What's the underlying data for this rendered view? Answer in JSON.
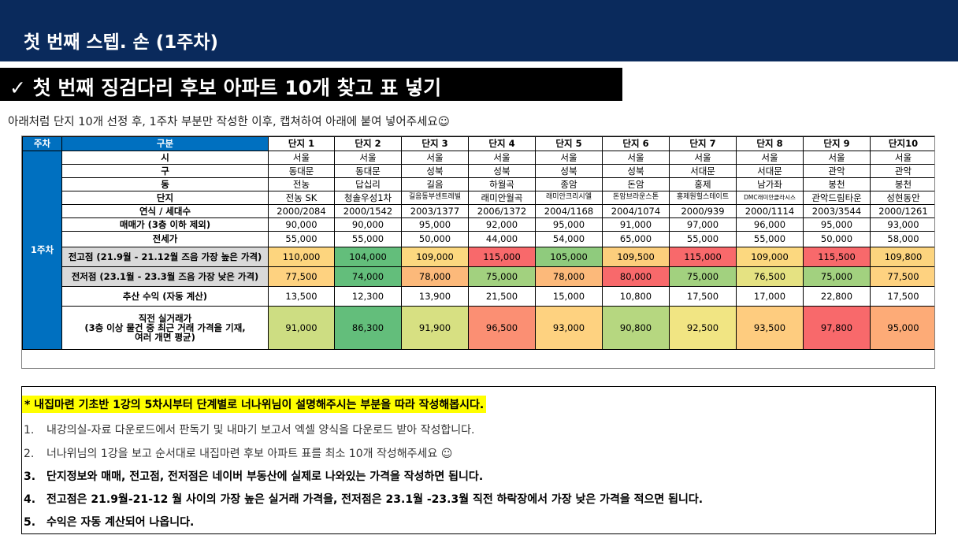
{
  "header": {
    "title": "첫 번째 스텝. 손 (1주차)"
  },
  "subtitle": {
    "check": "✓",
    "text": "첫 번째 징검다리 후보 아파트 10개 찾고 표 넣기"
  },
  "instruction": "아래처럼 단지 10개 선정 후, 1주차 부분만 작성한 이후, 캡쳐하여 아래에 붙여 넣어주세요☺",
  "table": {
    "head": {
      "week": "주차",
      "category": "구분",
      "complexes": [
        "단지 1",
        "단지 2",
        "단지 3",
        "단지 4",
        "단지 5",
        "단지 6",
        "단지 7",
        "단지 8",
        "단지 9",
        "단지10"
      ]
    },
    "week_label": "1주차",
    "rows": {
      "city": {
        "label": "시",
        "values": [
          "서울",
          "서울",
          "서울",
          "서울",
          "서울",
          "서울",
          "서울",
          "서울",
          "서울",
          "서울"
        ]
      },
      "gu": {
        "label": "구",
        "values": [
          "동대문",
          "동대문",
          "성북",
          "성북",
          "성북",
          "성북",
          "서대문",
          "서대문",
          "관악",
          "관악"
        ]
      },
      "dong": {
        "label": "동",
        "values": [
          "전농",
          "답십리",
          "길음",
          "하월곡",
          "종암",
          "돈암",
          "홍제",
          "남가좌",
          "봉천",
          "봉천"
        ]
      },
      "complex": {
        "label": "단지",
        "values": [
          "전농 SK",
          "청솔우성1차",
          "길음동부센트레빌",
          "래미안월곡",
          "래미안크리시엘",
          "돈암브라운스톤",
          "홍제원힐스테이트",
          "DMC래미안클라시스",
          "관악드림타운",
          "성현동안"
        ]
      },
      "year": {
        "label": "연식 / 세대수",
        "values": [
          "2000/2084",
          "2000/1542",
          "2003/1377",
          "2006/1372",
          "2004/1168",
          "2004/1074",
          "2000/939",
          "2000/1114",
          "2003/3544",
          "2000/1261"
        ]
      },
      "sale": {
        "label": "매매가 (3층 이하 제외)",
        "values": [
          "90,000",
          "90,000",
          "95,000",
          "92,000",
          "95,000",
          "91,000",
          "97,000",
          "96,000",
          "95,000",
          "93,000"
        ]
      },
      "jeonse": {
        "label": "전세가",
        "values": [
          "55,000",
          "55,000",
          "50,000",
          "44,000",
          "54,000",
          "65,000",
          "55,000",
          "55,000",
          "50,000",
          "58,000"
        ]
      },
      "high": {
        "label": "전고점 (21.9월 - 21.12월 즈음 가장 높은 가격)",
        "values": [
          "110,000",
          "104,000",
          "109,000",
          "115,000",
          "105,000",
          "109,500",
          "115,000",
          "109,000",
          "115,500",
          "109,800"
        ],
        "colors": [
          "#fdd57e",
          "#63be7b",
          "#fcd87f",
          "#f8696b",
          "#8fcb7d",
          "#fcce7c",
          "#f8696b",
          "#fcd87f",
          "#f8696b",
          "#fcd47e"
        ]
      },
      "low": {
        "label": "전저점 (23.1월 - 23.3월 즈음 가장 낮은 가격)",
        "values": [
          "77,500",
          "74,000",
          "78,000",
          "75,000",
          "78,000",
          "80,000",
          "75,000",
          "76,500",
          "75,000",
          "77,500"
        ],
        "colors": [
          "#fed280",
          "#63be7b",
          "#fcb97a",
          "#a2d17f",
          "#fcb97a",
          "#f8696b",
          "#a2d17f",
          "#e5e282",
          "#a2d17f",
          "#fed280"
        ]
      },
      "yield": {
        "label": "추산 수익 (자동 계산)",
        "values": [
          "13,500",
          "12,300",
          "13,900",
          "21,500",
          "15,000",
          "10,800",
          "17,500",
          "17,000",
          "22,800",
          "17,500"
        ]
      },
      "recent": {
        "label_lines": [
          "직전 실거래가",
          "(3층 이상 물건 중 최근 거래 가격을 기재,",
          "여러 개면 평균)"
        ],
        "values": [
          "91,000",
          "86,300",
          "91,900",
          "96,500",
          "93,000",
          "90,800",
          "92,500",
          "93,500",
          "97,800",
          "95,000"
        ],
        "colors": [
          "#cddd82",
          "#63be7b",
          "#d7e082",
          "#fb8f73",
          "#fed280",
          "#b6d780",
          "#f1e583",
          "#fecc7f",
          "#f8696b",
          "#fdab77"
        ]
      }
    }
  },
  "notes": {
    "highlight": "* 내집마련 기초반 1강의 5차시부터 단계별로 너나위님이 설명해주시는 부분을 따라 작성해봅시다.",
    "items": [
      {
        "num": "1.",
        "text": "내강의실-자료 다운로드에서 판독기 및 내마기 보고서 엑셀 양식을 다운로드 받아 작성합니다."
      },
      {
        "num": "2.",
        "text": "너나위님의 1강을 보고 순서대로 내집마련 후보 아파트 표를 최소 10개  작성해주세요 ☺"
      },
      {
        "num": "3.",
        "text": "단지정보와 매매,  전고점, 전저점은 네이버 부동산에 실제로 나와있는 가격을 작성하면 됩니다."
      },
      {
        "num": "4.",
        "text": "전고점은 21.9월-21-12  월 사이의 가장 높은 실거래 가격을, 전저점은 23.1월 -23.3월 직전 하락장에서 가장 낮은 가격을 적으면 됩니다."
      },
      {
        "num": "5.",
        "text": "수익은 자동 계산되어 나옵니다."
      }
    ]
  }
}
